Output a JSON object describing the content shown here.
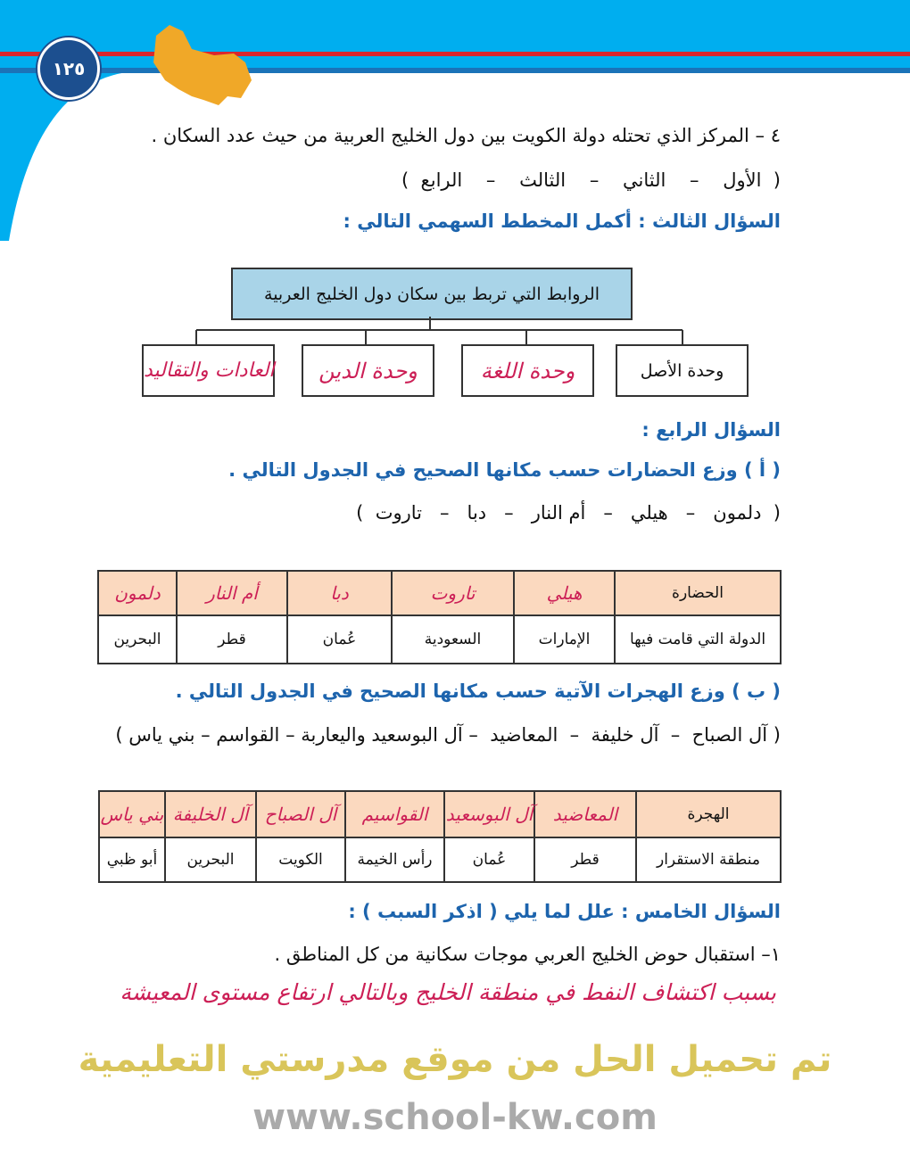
{
  "header": {
    "page_number": "١٢٥",
    "colors": {
      "band": "#00aeef",
      "stripe": "#d9272e",
      "map": "#f0a828",
      "badge": "#1c4f8f"
    }
  },
  "q4": {
    "text": "٤ – المركز الذي تحتله دولة الكويت بين دول الخليج العربية من حيث عدد السكان .",
    "options": "(  الأول    –    الثاني    –    الثالث    –    الرابع  )"
  },
  "q3": {
    "title": "السؤال الثالث : أكمل المخطط السهمي التالي  :",
    "diagram": {
      "root": "الروابط التي تربط بين سكان دول الخليج العربية",
      "children": [
        "وحدة الأصل",
        "وحدة اللغة",
        "وحدة الدين",
        "العادات والتقاليد"
      ]
    }
  },
  "q4_section": {
    "title": "السؤال الرابع  :",
    "a": {
      "instruction": "( أ ) وزع الحضارات حسب مكانها الصحيح في الجدول التالي .",
      "options": "(  دلمون   –   هيلي   –   أم النار   –   دبا   –   تاروت  )",
      "table": {
        "row_headers": [
          "الحضارة",
          "الدولة التي قامت فيها"
        ],
        "answers": [
          "هيلي",
          "تاروت",
          "دبا",
          "أم النار",
          "دلمون"
        ],
        "countries": [
          "الإمارات",
          "السعودية",
          "عُمان",
          "قطر",
          "البحرين"
        ]
      }
    },
    "b": {
      "instruction": "( ب ) وزع الهجرات الآتية حسب مكانها الصحيح في الجدول التالي .",
      "options": "( آل الصباح  –  آل خليفة  –  المعاضيد  – آل البوسعيد واليعاربة – القواسم – بني ياس )",
      "table": {
        "row_headers": [
          "الهجرة",
          "منطقة الاستقرار"
        ],
        "answers": [
          "المعاضيد",
          "آل البوسعيد",
          "القواسيم",
          "آل الصباح",
          "آل الخليفة",
          "بني ياس"
        ],
        "regions": [
          "قطر",
          "عُمان",
          "رأس الخيمة",
          "الكويت",
          "البحرين",
          "أبو ظبي"
        ]
      }
    }
  },
  "q5": {
    "title": "السؤال الخامس  : علل لما يلي ( اذكر السبب )  :",
    "item": "١– استقبال حوض الخليج العربي موجات سكانية من كل المناطق .",
    "answer": "بسبب اكتشاف النفط في منطقة الخليج وبالتالي ارتفاع مستوى المعيشة"
  },
  "watermark": {
    "site": "www.school-kw.com",
    "text": "تم تحميل الحل من موقع مدرستي التعليمية"
  }
}
